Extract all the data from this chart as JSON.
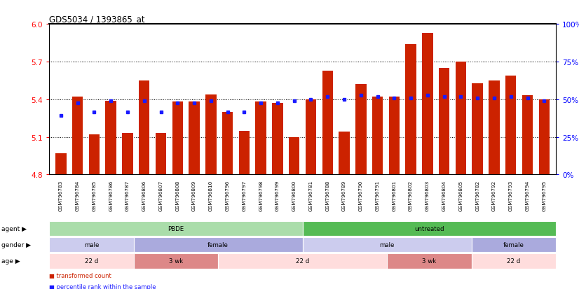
{
  "title": "GDS5034 / 1393865_at",
  "samples": [
    "GSM796783",
    "GSM796784",
    "GSM796785",
    "GSM796786",
    "GSM796787",
    "GSM796806",
    "GSM796807",
    "GSM796808",
    "GSM796809",
    "GSM796810",
    "GSM796796",
    "GSM796797",
    "GSM796798",
    "GSM796799",
    "GSM796800",
    "GSM796781",
    "GSM796788",
    "GSM796789",
    "GSM796790",
    "GSM796791",
    "GSM796801",
    "GSM796802",
    "GSM796803",
    "GSM796804",
    "GSM796805",
    "GSM796782",
    "GSM796792",
    "GSM796793",
    "GSM796794",
    "GSM796795"
  ],
  "bar_values": [
    4.97,
    5.42,
    5.12,
    5.39,
    5.13,
    5.55,
    5.13,
    5.38,
    5.38,
    5.44,
    5.3,
    5.15,
    5.38,
    5.37,
    5.1,
    5.4,
    5.63,
    5.14,
    5.52,
    5.42,
    5.42,
    5.84,
    5.93,
    5.65,
    5.7,
    5.53,
    5.55,
    5.59,
    5.43,
    5.4
  ],
  "percentile_values": [
    5.27,
    5.37,
    5.3,
    5.39,
    5.3,
    5.39,
    5.3,
    5.37,
    5.37,
    5.39,
    5.3,
    5.3,
    5.37,
    5.37,
    5.39,
    5.4,
    5.42,
    5.4,
    5.43,
    5.42,
    5.41,
    5.41,
    5.43,
    5.42,
    5.42,
    5.41,
    5.41,
    5.42,
    5.41,
    5.39
  ],
  "y_min": 4.8,
  "y_max": 6.0,
  "y_ticks_left": [
    4.8,
    5.1,
    5.4,
    5.7,
    6.0
  ],
  "bar_color": "#cc2200",
  "percentile_color": "#1a1aff",
  "dotted_lines": [
    5.1,
    5.4,
    5.7
  ],
  "agent_groups": [
    {
      "label": "PBDE",
      "start": 0,
      "end": 14,
      "color": "#aaddaa"
    },
    {
      "label": "untreated",
      "start": 15,
      "end": 29,
      "color": "#55bb55"
    }
  ],
  "gender_groups": [
    {
      "label": "male",
      "start": 0,
      "end": 4,
      "color": "#ccccee"
    },
    {
      "label": "female",
      "start": 5,
      "end": 14,
      "color": "#aaaadd"
    },
    {
      "label": "male",
      "start": 15,
      "end": 24,
      "color": "#ccccee"
    },
    {
      "label": "female",
      "start": 25,
      "end": 29,
      "color": "#aaaadd"
    }
  ],
  "age_groups": [
    {
      "label": "22 d",
      "start": 0,
      "end": 4,
      "color": "#ffdddd"
    },
    {
      "label": "3 wk",
      "start": 5,
      "end": 9,
      "color": "#dd8888"
    },
    {
      "label": "22 d",
      "start": 10,
      "end": 19,
      "color": "#ffdddd"
    },
    {
      "label": "3 wk",
      "start": 20,
      "end": 24,
      "color": "#dd8888"
    },
    {
      "label": "22 d",
      "start": 25,
      "end": 29,
      "color": "#ffdddd"
    }
  ],
  "legend_items": [
    {
      "label": "transformed count",
      "color": "#cc2200"
    },
    {
      "label": "percentile rank within the sample",
      "color": "#1a1aff"
    }
  ],
  "row_labels": [
    "agent",
    "gender",
    "age"
  ]
}
